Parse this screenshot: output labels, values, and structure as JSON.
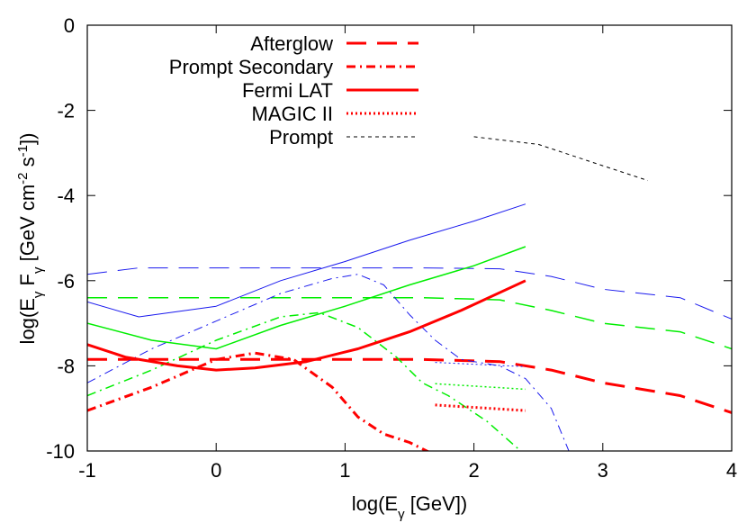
{
  "chart_data": {
    "type": "line",
    "xlabel": "log(E_γ [GeV])",
    "ylabel": "log(E_γ F_γ [GeV cm^-2 s^-1])",
    "xlim": [
      -1,
      4
    ],
    "ylim": [
      -10,
      0
    ],
    "xticks": [
      "-1",
      "0",
      "1",
      "2",
      "3",
      "4"
    ],
    "yticks": [
      "0",
      "-2",
      "-4",
      "-6",
      "-8",
      "-10"
    ],
    "grid": false,
    "legend_position": "top-left",
    "legend": [
      {
        "label": "Afterglow",
        "style": "long-dash"
      },
      {
        "label": "Prompt Secondary",
        "style": "dash-dot"
      },
      {
        "label": "Fermi LAT",
        "style": "solid"
      },
      {
        "label": "MAGIC II",
        "style": "dotted"
      },
      {
        "label": "Prompt",
        "style": "short-dash"
      }
    ],
    "colors": {
      "red": "#ff0000",
      "green": "#00ee00",
      "blue": "#1a1aee",
      "black": "#000000"
    },
    "series": [
      {
        "group": "Afterglow",
        "color": "red",
        "style": "long-dash",
        "width": 3,
        "x": [
          -1,
          1.6,
          2.2,
          2.6,
          3.0,
          3.6,
          4.0
        ],
        "y": [
          -7.85,
          -7.85,
          -7.9,
          -8.1,
          -8.4,
          -8.7,
          -9.1
        ]
      },
      {
        "group": "Afterglow",
        "color": "green",
        "style": "long-dash",
        "width": 1.5,
        "x": [
          -1,
          1.6,
          2.2,
          2.6,
          3.0,
          3.6,
          4.0
        ],
        "y": [
          -6.4,
          -6.4,
          -6.45,
          -6.7,
          -7.0,
          -7.2,
          -7.6
        ]
      },
      {
        "group": "Afterglow",
        "color": "blue",
        "style": "long-dash",
        "width": 1,
        "x": [
          -1,
          -0.6,
          1.6,
          2.2,
          2.6,
          3.0,
          3.6,
          4.0
        ],
        "y": [
          -5.85,
          -5.7,
          -5.7,
          -5.72,
          -5.9,
          -6.2,
          -6.4,
          -6.9
        ]
      },
      {
        "group": "Prompt Secondary",
        "color": "red",
        "style": "dash-dot",
        "width": 3,
        "x": [
          -1,
          -0.5,
          0,
          0.3,
          0.6,
          0.9,
          1.1,
          1.3,
          1.5,
          1.7
        ],
        "y": [
          -9.05,
          -8.5,
          -7.85,
          -7.7,
          -7.85,
          -8.5,
          -9.2,
          -9.6,
          -9.8,
          -10.1
        ]
      },
      {
        "group": "Prompt Secondary",
        "color": "green",
        "style": "dash-dot",
        "width": 1.5,
        "x": [
          -1,
          -0.5,
          0,
          0.5,
          0.8,
          1.1,
          1.4,
          1.6,
          1.8,
          2.1,
          2.4
        ],
        "y": [
          -8.7,
          -8.1,
          -7.4,
          -6.85,
          -6.75,
          -7.1,
          -7.8,
          -8.4,
          -8.7,
          -9.3,
          -10.1
        ]
      },
      {
        "group": "Prompt Secondary",
        "color": "blue",
        "style": "dash-dot",
        "width": 1,
        "x": [
          -1,
          -0.5,
          0,
          0.5,
          0.9,
          1.1,
          1.3,
          1.5,
          1.7,
          1.9,
          2.2,
          2.4,
          2.6,
          2.75
        ],
        "y": [
          -8.4,
          -7.6,
          -6.95,
          -6.3,
          -5.95,
          -5.85,
          -6.1,
          -6.8,
          -7.4,
          -7.85,
          -8.0,
          -8.3,
          -9.0,
          -10.1
        ]
      },
      {
        "group": "Fermi LAT",
        "color": "red",
        "style": "solid",
        "width": 3,
        "x": [
          -1,
          -0.7,
          -0.3,
          0,
          0.3,
          0.7,
          1.1,
          1.5,
          1.9,
          2.4
        ],
        "y": [
          -7.5,
          -7.8,
          -8.0,
          -8.1,
          -8.05,
          -7.9,
          -7.6,
          -7.2,
          -6.7,
          -6.0
        ]
      },
      {
        "group": "Fermi LAT",
        "color": "green",
        "style": "solid",
        "width": 1.5,
        "x": [
          -1,
          -0.5,
          0,
          0.5,
          1.0,
          1.5,
          2.0,
          2.4
        ],
        "y": [
          -7.0,
          -7.4,
          -7.6,
          -7.05,
          -6.6,
          -6.1,
          -5.65,
          -5.2
        ]
      },
      {
        "group": "Fermi LAT",
        "color": "blue",
        "style": "solid",
        "width": 1,
        "x": [
          -1,
          -0.6,
          0,
          0.5,
          1.0,
          1.5,
          2.0,
          2.4
        ],
        "y": [
          -6.5,
          -6.85,
          -6.6,
          -6.0,
          -5.55,
          -5.05,
          -4.6,
          -4.2
        ]
      },
      {
        "group": "MAGIC II",
        "color": "red",
        "style": "dotted",
        "width": 3,
        "x": [
          1.7,
          2.4
        ],
        "y": [
          -8.92,
          -9.05
        ]
      },
      {
        "group": "MAGIC II",
        "color": "green",
        "style": "dotted",
        "width": 1.5,
        "x": [
          1.7,
          2.4
        ],
        "y": [
          -8.42,
          -8.55
        ]
      },
      {
        "group": "MAGIC II",
        "color": "blue",
        "style": "dotted",
        "width": 1,
        "x": [
          1.7,
          2.4
        ],
        "y": [
          -7.92,
          -8.02
        ]
      },
      {
        "group": "Prompt",
        "color": "black",
        "style": "short-dash",
        "width": 1,
        "x": [
          2.0,
          2.5,
          3.0,
          3.35
        ],
        "y": [
          -2.62,
          -2.8,
          -3.3,
          -3.65
        ]
      }
    ]
  }
}
